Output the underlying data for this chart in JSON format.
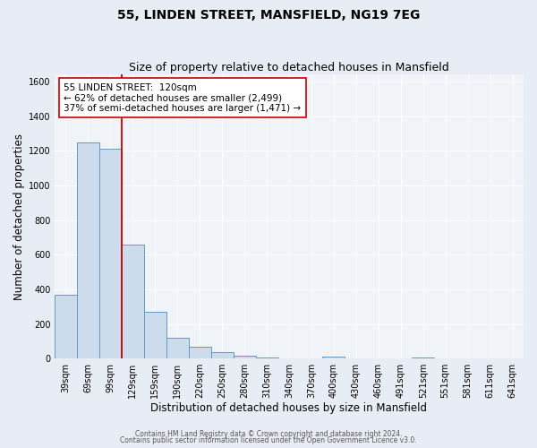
{
  "title": "55, LINDEN STREET, MANSFIELD, NG19 7EG",
  "subtitle": "Size of property relative to detached houses in Mansfield",
  "xlabel": "Distribution of detached houses by size in Mansfield",
  "ylabel": "Number of detached properties",
  "footnote1": "Contains HM Land Registry data © Crown copyright and database right 2024.",
  "footnote2": "Contains public sector information licensed under the Open Government Licence v3.0.",
  "bin_labels": [
    "39sqm",
    "69sqm",
    "99sqm",
    "129sqm",
    "159sqm",
    "190sqm",
    "220sqm",
    "250sqm",
    "280sqm",
    "310sqm",
    "340sqm",
    "370sqm",
    "400sqm",
    "430sqm",
    "460sqm",
    "491sqm",
    "521sqm",
    "551sqm",
    "581sqm",
    "611sqm",
    "641sqm"
  ],
  "bar_heights": [
    370,
    1250,
    1210,
    660,
    270,
    120,
    70,
    38,
    20,
    5,
    0,
    0,
    12,
    0,
    0,
    0,
    5,
    0,
    0,
    0,
    0
  ],
  "bar_color": "#ccdcec",
  "bar_edge_color": "#6699bb",
  "red_line_color": "#cc0000",
  "red_line_bin_index": 3,
  "annotation_line1": "55 LINDEN STREET:  120sqm",
  "annotation_line2": "← 62% of detached houses are smaller (2,499)",
  "annotation_line3": "37% of semi-detached houses are larger (1,471) →",
  "annotation_box_color": "#ffffff",
  "annotation_box_edge": "#cc0000",
  "ylim": [
    0,
    1640
  ],
  "yticks": [
    0,
    200,
    400,
    600,
    800,
    1000,
    1200,
    1400,
    1600
  ],
  "bg_color": "#e8edf5",
  "plot_bg_color": "#f0f4f8",
  "grid_color": "#ffffff",
  "title_fontsize": 10,
  "subtitle_fontsize": 9,
  "tick_fontsize": 7,
  "label_fontsize": 8.5,
  "footnote_fontsize": 5.5,
  "ann_fontsize": 7.5
}
